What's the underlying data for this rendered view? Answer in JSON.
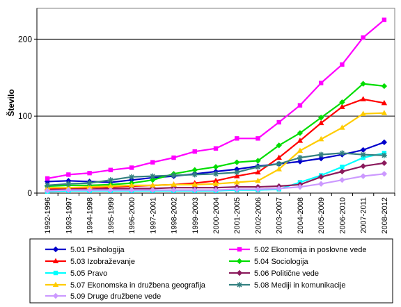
{
  "chart_data": {
    "type": "line",
    "title": "",
    "xlabel": "",
    "ylabel": "Število",
    "ylim": [
      0,
      240
    ],
    "yticks": [
      0,
      100,
      200
    ],
    "grid": "horizontal major lines",
    "legend_position": "bottom",
    "categories": [
      "1992-1996",
      "1993-1997",
      "1994-1998",
      "1995-1999",
      "1996-2000",
      "1997-2001",
      "1998-2002",
      "1999-2003",
      "2000-2004",
      "2001-2005",
      "2002-2006",
      "2003-2007",
      "2004-2008",
      "2005-2009",
      "2006-2010",
      "2007-2011",
      "2008-2012"
    ],
    "series": [
      {
        "name": "5.01 Psihologija",
        "color": "#0000CC",
        "marker": "diamond",
        "values": [
          15,
          16,
          15,
          14,
          17,
          20,
          22,
          25,
          28,
          31,
          35,
          38,
          41,
          45,
          50,
          56,
          66
        ]
      },
      {
        "name": "5.02 Ekonomija in poslovne vede",
        "color": "#FF00FF",
        "marker": "square",
        "values": [
          19,
          24,
          26,
          30,
          33,
          40,
          46,
          54,
          58,
          71,
          71,
          92,
          114,
          143,
          167,
          202,
          225
        ]
      },
      {
        "name": "5.03 Izobraževanje",
        "color": "#FF0000",
        "marker": "triangle",
        "values": [
          5,
          6,
          7,
          8,
          9,
          10,
          11,
          13,
          16,
          22,
          27,
          46,
          68,
          91,
          112,
          122,
          117
        ]
      },
      {
        "name": "5.04 Sociologija",
        "color": "#00DD00",
        "marker": "diamond",
        "values": [
          9,
          10,
          10,
          11,
          13,
          17,
          25,
          30,
          34,
          40,
          42,
          62,
          78,
          98,
          118,
          142,
          139
        ]
      },
      {
        "name": "5.05 Pravo",
        "color": "#00FFFF",
        "marker": "square",
        "values": [
          2,
          3,
          3,
          3,
          3,
          3,
          3,
          3,
          3,
          4,
          4,
          5,
          14,
          23,
          34,
          46,
          52
        ]
      },
      {
        "name": "5.06 Politične vede",
        "color": "#8B1A5C",
        "marker": "diamond",
        "values": [
          4,
          5,
          5,
          6,
          6,
          6,
          7,
          7,
          7,
          8,
          8,
          9,
          11,
          21,
          28,
          35,
          39
        ]
      },
      {
        "name": "5.07 Ekonomska in družbena geografija",
        "color": "#FFCC00",
        "marker": "triangle",
        "values": [
          7,
          7,
          8,
          9,
          10,
          10,
          11,
          11,
          12,
          14,
          16,
          31,
          55,
          70,
          85,
          103,
          104
        ]
      },
      {
        "name": "5.08 Mediji in komunikacije",
        "color": "#338080",
        "marker": "star",
        "values": [
          10,
          12,
          13,
          17,
          21,
          22,
          23,
          24,
          25,
          27,
          34,
          38,
          46,
          50,
          52,
          50,
          49
        ]
      },
      {
        "name": "5.09 Druge družbene vede",
        "color": "#CC99FF",
        "marker": "diamond",
        "values": [
          3,
          4,
          4,
          4,
          4,
          4,
          4,
          4,
          4,
          5,
          5,
          6,
          8,
          12,
          17,
          22,
          25
        ]
      }
    ]
  }
}
